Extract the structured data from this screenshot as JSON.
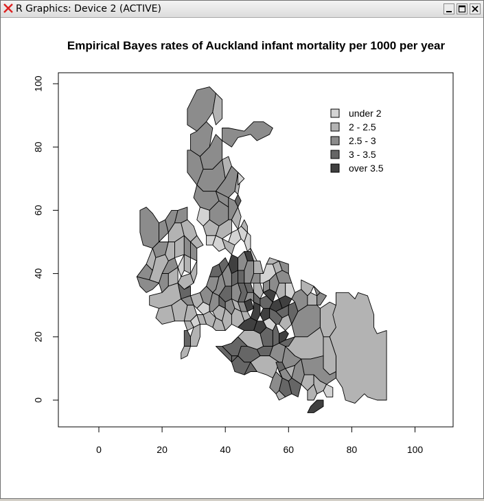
{
  "window": {
    "title": "R Graphics: Device 2 (ACTIVE)",
    "icons": {
      "app": "x-icon",
      "minimize": "minimize-icon",
      "maximize": "maximize-icon",
      "close": "close-icon"
    }
  },
  "chart_data": {
    "type": "choropleth-map",
    "title": "Empirical Bayes rates of Auckland infant mortality per 1000 per year",
    "xlabel": "",
    "ylabel": "",
    "xlim": [
      -13,
      112
    ],
    "ylim": [
      -8,
      103
    ],
    "x_ticks": [
      0,
      20,
      40,
      60,
      80,
      100
    ],
    "y_ticks": [
      0,
      20,
      40,
      60,
      80,
      100
    ],
    "legend": {
      "placement": "top-right",
      "entries": [
        {
          "label": "under 2",
          "color": "#d3d3d3"
        },
        {
          "label": "2 - 2.5",
          "color": "#b3b3b3"
        },
        {
          "label": "2.5 - 3",
          "color": "#8c8c8c"
        },
        {
          "label": "3 - 3.5",
          "color": "#666666"
        },
        {
          "label": "over 3.5",
          "color": "#404040"
        }
      ]
    }
  }
}
